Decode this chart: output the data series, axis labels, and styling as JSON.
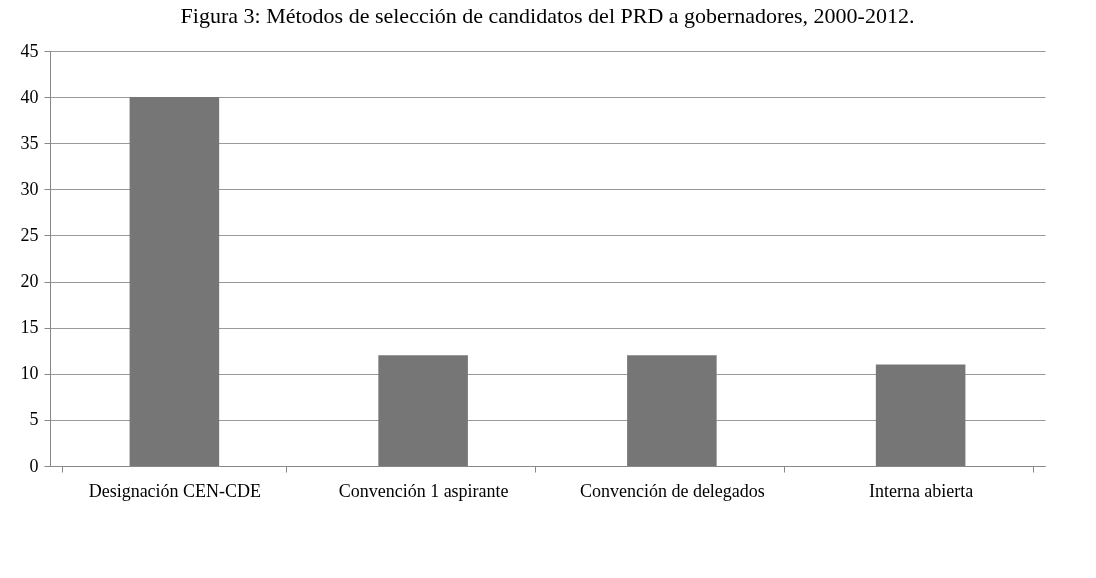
{
  "chart_data": {
    "type": "bar",
    "title": "Figura 3: Métodos de selección de candidatos del PRD a gobernadores, 2000-2012.",
    "categories": [
      "Designación CEN-CDE",
      "Convención 1 aspirante",
      "Convención de delegados",
      "Interna abierta"
    ],
    "values": [
      40,
      12,
      12,
      11
    ],
    "color": "#767676",
    "ylim": [
      0,
      45
    ],
    "yticks": [
      0,
      5,
      10,
      15,
      20,
      25,
      30,
      35,
      40,
      45
    ],
    "grid": "y"
  }
}
